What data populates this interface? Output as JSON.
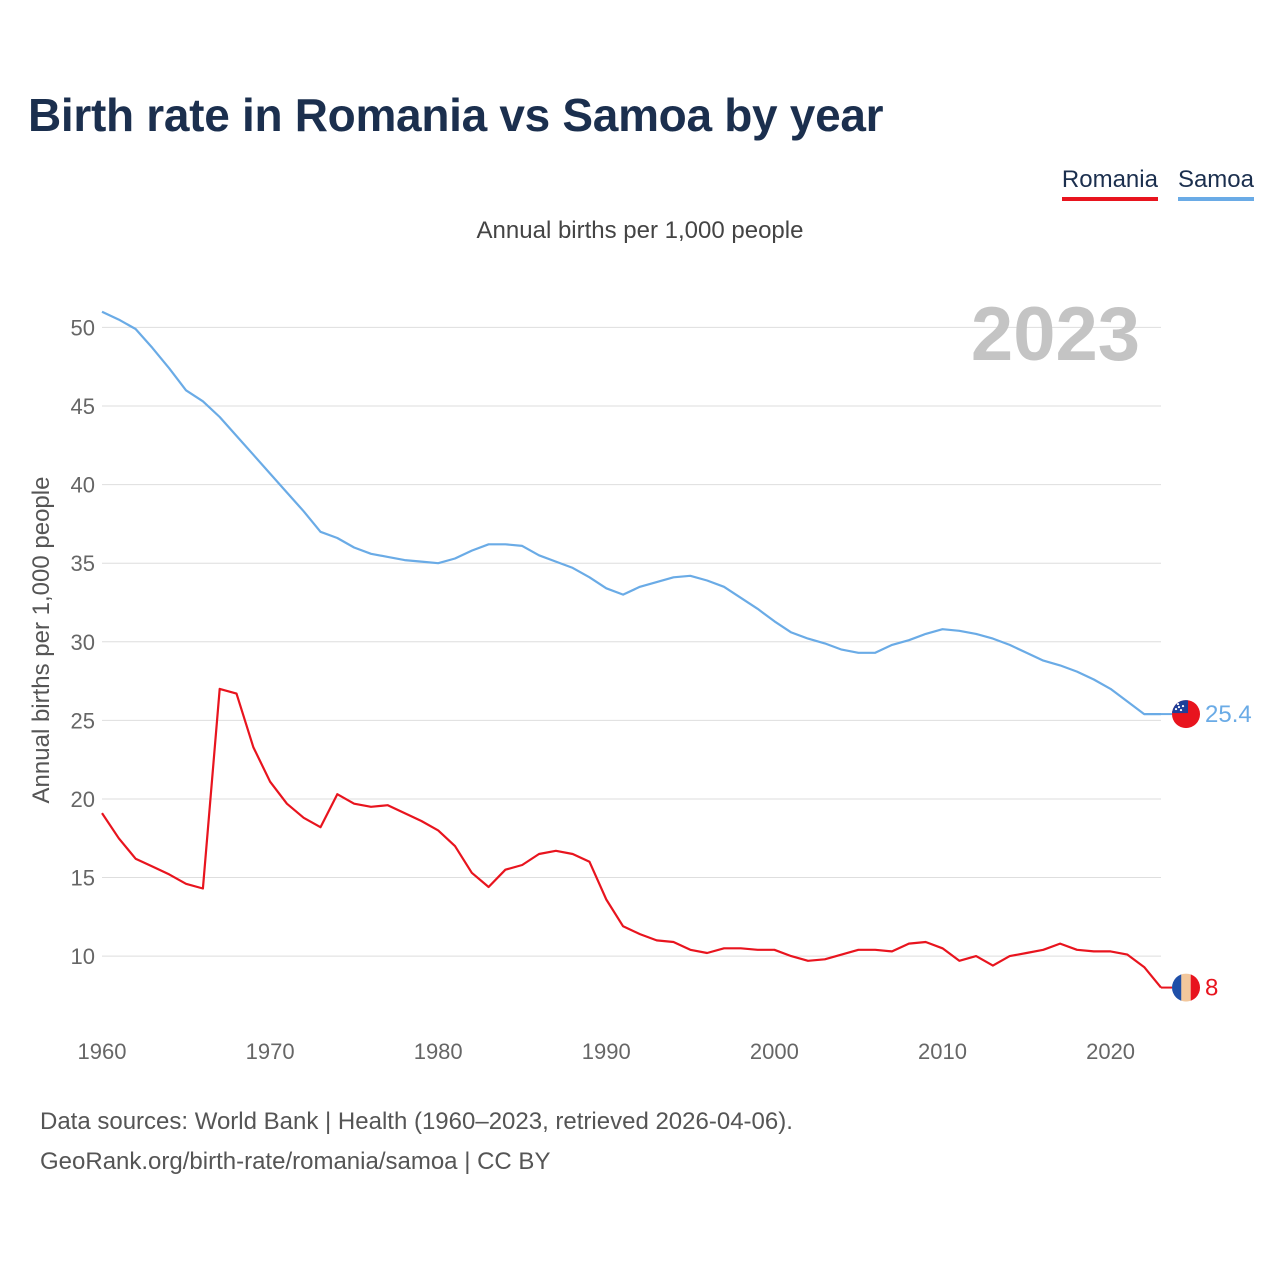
{
  "title": "Birth rate in Romania vs Samoa by year",
  "subtitle": "Annual births per 1,000 people",
  "source_line1": "Data sources: World Bank | Health (1960–2023, retrieved 2026-04-06).",
  "source_line2": "GeoRank.org/birth-rate/romania/samoa | CC BY",
  "chart_data": {
    "type": "line",
    "title": "Birth rate in Romania vs Samoa by year",
    "xlabel": "",
    "ylabel": "Annual births per 1,000 people",
    "year_label": "2023",
    "xlim": [
      1960,
      2023
    ],
    "ylim": [
      6,
      52
    ],
    "x_ticks": [
      1960,
      1970,
      1980,
      1990,
      2000,
      2010,
      2020
    ],
    "y_ticks": [
      10,
      15,
      20,
      25,
      30,
      35,
      40,
      45,
      50
    ],
    "grid": true,
    "legend_position": "top-right",
    "x": [
      1960,
      1961,
      1962,
      1963,
      1964,
      1965,
      1966,
      1967,
      1968,
      1969,
      1970,
      1971,
      1972,
      1973,
      1974,
      1975,
      1976,
      1977,
      1978,
      1979,
      1980,
      1981,
      1982,
      1983,
      1984,
      1985,
      1986,
      1987,
      1988,
      1989,
      1990,
      1991,
      1992,
      1993,
      1994,
      1995,
      1996,
      1997,
      1998,
      1999,
      2000,
      2001,
      2002,
      2003,
      2004,
      2005,
      2006,
      2007,
      2008,
      2009,
      2010,
      2011,
      2012,
      2013,
      2014,
      2015,
      2016,
      2017,
      2018,
      2019,
      2020,
      2021,
      2022,
      2023
    ],
    "series": [
      {
        "name": "Romania",
        "color": "#e8141e",
        "end_label": "8",
        "values": [
          19.1,
          17.5,
          16.2,
          15.7,
          15.2,
          14.6,
          14.3,
          27.0,
          26.7,
          23.3,
          21.1,
          19.7,
          18.8,
          18.2,
          20.3,
          19.7,
          19.5,
          19.6,
          19.1,
          18.6,
          18.0,
          17.0,
          15.3,
          14.4,
          15.5,
          15.8,
          16.5,
          16.7,
          16.5,
          16.0,
          13.6,
          11.9,
          11.4,
          11.0,
          10.9,
          10.4,
          10.2,
          10.5,
          10.5,
          10.4,
          10.4,
          10.0,
          9.7,
          9.8,
          10.1,
          10.4,
          10.4,
          10.3,
          10.8,
          10.9,
          10.5,
          9.7,
          10.0,
          9.4,
          10.0,
          10.2,
          10.4,
          10.8,
          10.4,
          10.3,
          10.3,
          10.1,
          9.3,
          8.0
        ]
      },
      {
        "name": "Samoa",
        "color": "#6aabe6",
        "end_label": "25.4",
        "values": [
          51.0,
          50.5,
          49.9,
          48.7,
          47.4,
          46.0,
          45.3,
          44.3,
          43.1,
          41.9,
          40.7,
          39.5,
          38.3,
          37.0,
          36.6,
          36.0,
          35.6,
          35.4,
          35.2,
          35.1,
          35.0,
          35.3,
          35.8,
          36.2,
          36.2,
          36.1,
          35.5,
          35.1,
          34.7,
          34.1,
          33.4,
          33.0,
          33.5,
          33.8,
          34.1,
          34.2,
          33.9,
          33.5,
          32.8,
          32.1,
          31.3,
          30.6,
          30.2,
          29.9,
          29.5,
          29.3,
          29.3,
          29.8,
          30.1,
          30.5,
          30.8,
          30.7,
          30.5,
          30.2,
          29.8,
          29.3,
          28.8,
          28.5,
          28.1,
          27.6,
          27.0,
          26.2,
          25.4,
          25.4
        ]
      }
    ]
  }
}
